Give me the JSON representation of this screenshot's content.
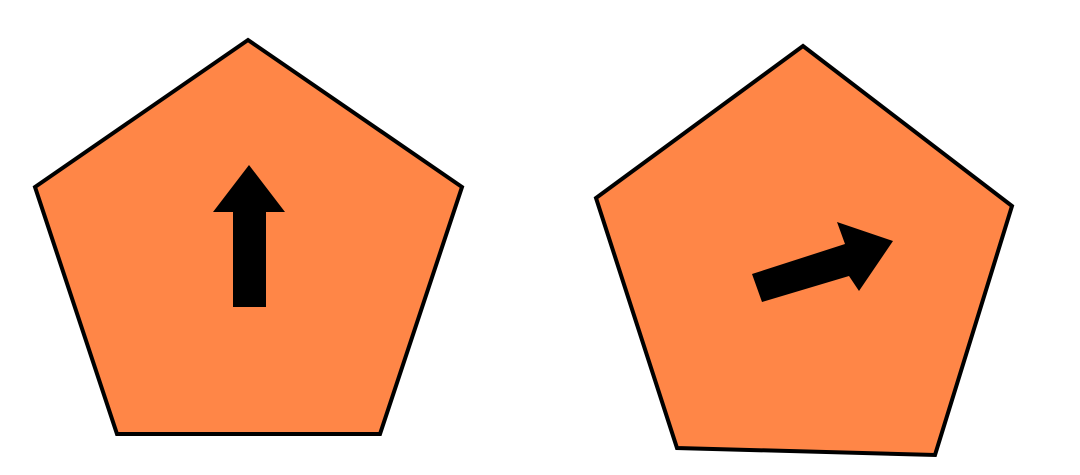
{
  "figures": [
    {
      "shape": "pentagon",
      "fill": "#FF8647",
      "outline": "#000000",
      "icon": "arrow-up-icon",
      "arrow_color": "#000000"
    },
    {
      "shape": "pentagon",
      "fill": "#FF8647",
      "outline": "#000000",
      "icon": "arrow-right-up-icon",
      "arrow_color": "#000000"
    }
  ]
}
